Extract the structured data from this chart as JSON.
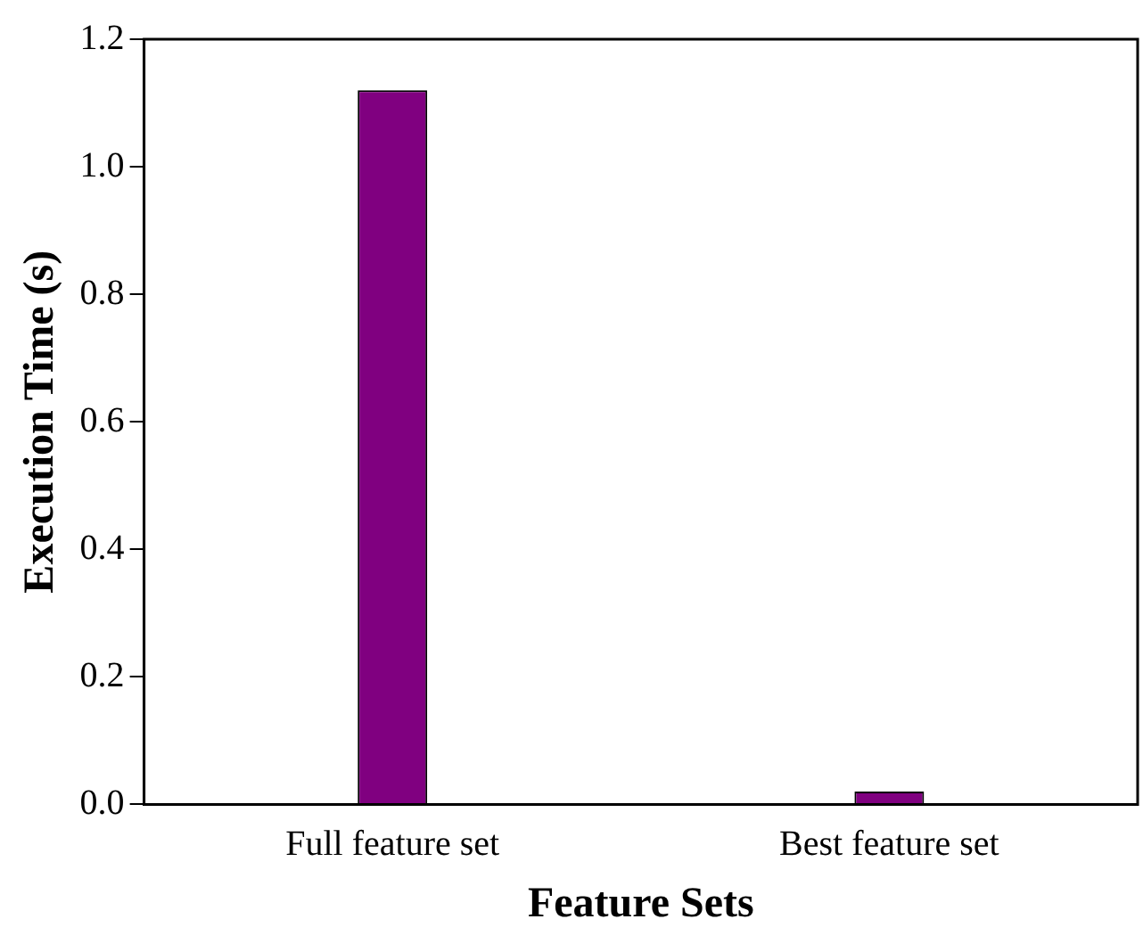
{
  "chart_data": {
    "type": "bar",
    "xlabel": "Feature Sets",
    "ylabel": "Execution Time (s)",
    "categories": [
      "Full feature set",
      "Best feature set"
    ],
    "values": [
      1.12,
      0.02
    ],
    "color": "#800080",
    "ylim": [
      0,
      1.2
    ],
    "yticks": [
      {
        "value": 0,
        "label": "0.0"
      },
      {
        "value": 0.2,
        "label": "0.2"
      },
      {
        "value": 0.4,
        "label": "0.4"
      },
      {
        "value": 0.6,
        "label": "0.6"
      },
      {
        "value": 0.8,
        "label": "0.8"
      },
      {
        "value": 1,
        "label": "1.0"
      },
      {
        "value": 1.2,
        "label": "1.2"
      }
    ],
    "grid": false,
    "legend": false
  }
}
